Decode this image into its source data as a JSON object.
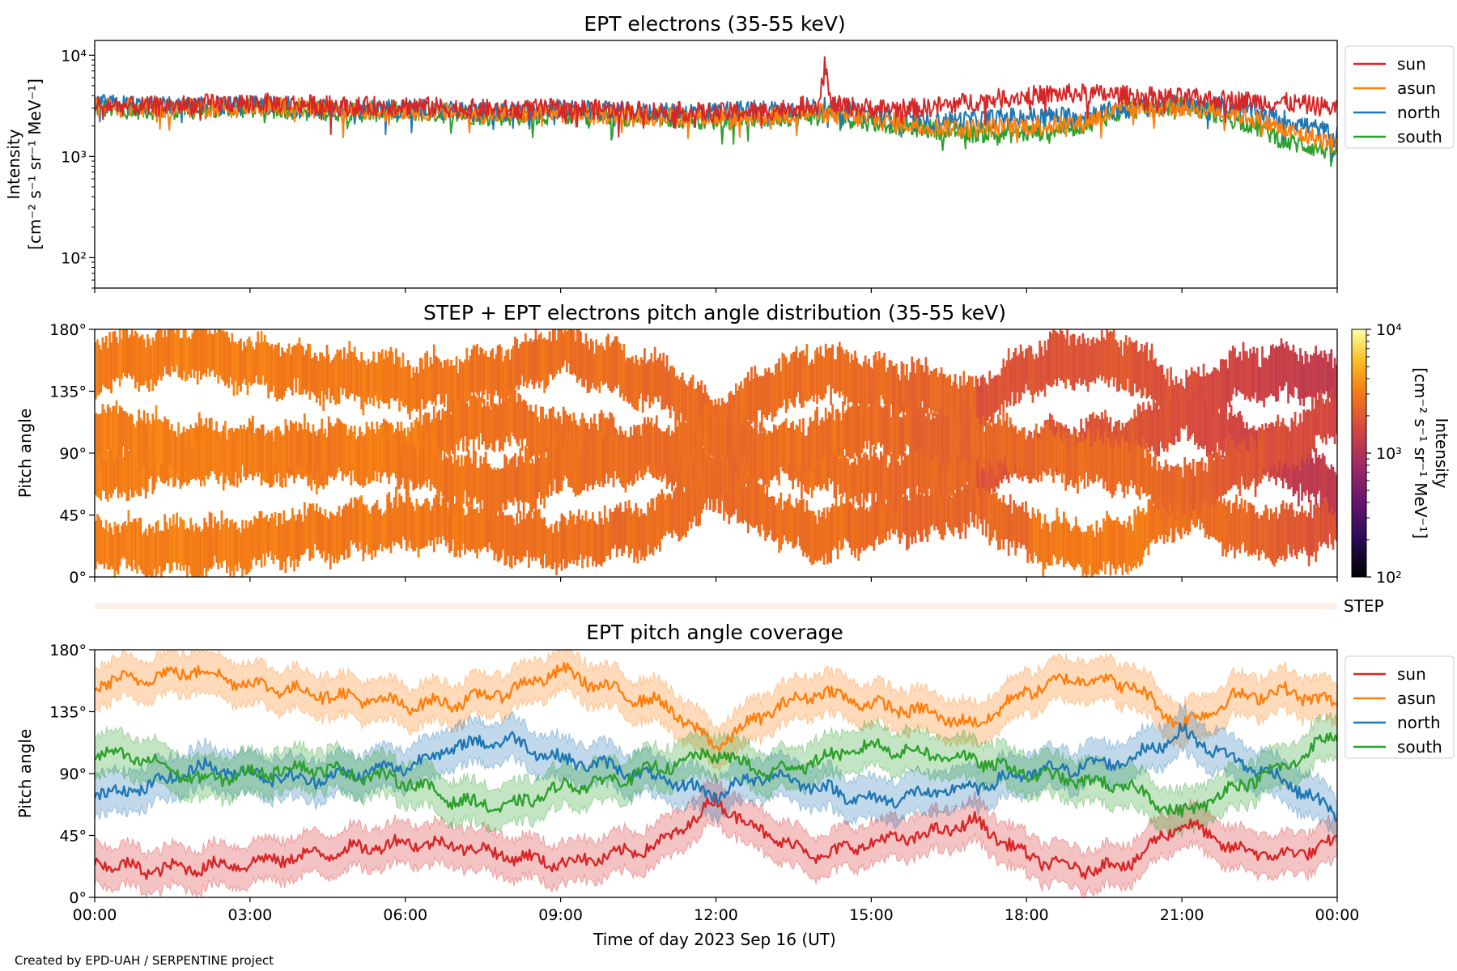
{
  "footer": {
    "credit": "Created by EPD-UAH / SERPENTINE project"
  },
  "colors": {
    "sun": "#d62728",
    "asun": "#ff7f0e",
    "north": "#1f77b4",
    "south": "#2ca02c",
    "step_band": "#fdf0ea"
  },
  "chart_data": [
    {
      "type": "line",
      "title": "EPT electrons (35-55 keV)",
      "ylabel": [
        "Intensity",
        "[cm⁻² s⁻¹ sr⁻¹ MeV⁻¹]"
      ],
      "yscale": "log",
      "ylim": [
        50,
        14000
      ],
      "y_tick_labels": [
        "10²",
        "10³",
        "10⁴"
      ],
      "xlim_hours": [
        0,
        24
      ],
      "legend_position": "outside-right-top",
      "x_hours": [
        0,
        1,
        2,
        3,
        4,
        5,
        6,
        7,
        8,
        9,
        10,
        11,
        12,
        13,
        14,
        15,
        16,
        17,
        18,
        19,
        20,
        21,
        22,
        23,
        24
      ],
      "series": [
        {
          "name": "sun",
          "values": [
            3200,
            3100,
            3300,
            3400,
            3300,
            3100,
            3200,
            3000,
            2900,
            3000,
            2900,
            2800,
            2700,
            2800,
            3300,
            3000,
            3000,
            3500,
            4000,
            4200,
            4000,
            3800,
            3600,
            3400,
            3000
          ]
        },
        {
          "name": "asun",
          "values": [
            3100,
            3000,
            3000,
            3200,
            3000,
            2800,
            2900,
            2700,
            2600,
            2700,
            2600,
            2500,
            2400,
            2500,
            2700,
            2300,
            2000,
            1900,
            2000,
            2100,
            3000,
            3100,
            2700,
            1800,
            1300
          ]
        },
        {
          "name": "north",
          "values": [
            3300,
            3200,
            3100,
            3200,
            3100,
            2900,
            3000,
            2800,
            2700,
            2900,
            2800,
            2700,
            2800,
            2900,
            3100,
            2600,
            2200,
            2300,
            2500,
            2500,
            3000,
            3300,
            3100,
            2300,
            1600
          ]
        },
        {
          "name": "south",
          "values": [
            3000,
            2900,
            2900,
            3000,
            2900,
            2700,
            2800,
            2600,
            2500,
            2600,
            2500,
            2400,
            2300,
            2400,
            2600,
            2200,
            1900,
            1700,
            1700,
            2000,
            2900,
            3200,
            2400,
            1400,
            1100
          ]
        }
      ]
    },
    {
      "type": "heatmap",
      "title": "STEP + EPT electrons pitch angle distribution (35-55 keV)",
      "ylabel": "Pitch angle",
      "ylim": [
        0,
        180
      ],
      "y_tick_labels": [
        "0°",
        "45°",
        "90°",
        "135°",
        "180°"
      ],
      "colorbar": {
        "label": [
          "Intensity",
          "[cm⁻² s⁻¹ sr⁻¹ MeV⁻¹]"
        ],
        "scale": "log",
        "range": [
          100,
          10000
        ],
        "tick_labels": [
          "10²",
          "10³",
          "10⁴"
        ]
      },
      "intensity_hours": [
        0,
        2,
        4,
        6,
        8,
        10,
        12,
        14,
        16,
        18,
        20,
        22,
        24
      ],
      "intensity_values": [
        3100,
        3200,
        3000,
        3000,
        2700,
        2600,
        2500,
        2700,
        2300,
        2500,
        2600,
        2000,
        1500
      ],
      "step_band_label": "STEP"
    },
    {
      "type": "line",
      "title": "EPT pitch angle coverage",
      "ylabel": "Pitch angle",
      "xlabel": "Time of day 2023 Sep 16 (UT)",
      "ylim": [
        0,
        180
      ],
      "y_tick_labels": [
        "0°",
        "45°",
        "90°",
        "135°",
        "180°"
      ],
      "x_tick_labels": [
        "00:00",
        "03:00",
        "06:00",
        "09:00",
        "12:00",
        "15:00",
        "18:00",
        "21:00",
        "00:00"
      ],
      "band_halfwidth_deg": 15,
      "legend_position": "outside-right-top",
      "x_hours": [
        0,
        1,
        2,
        3,
        4,
        5,
        6,
        7,
        8,
        9,
        10,
        11,
        12,
        13,
        14,
        15,
        16,
        17,
        18,
        19,
        20,
        21,
        22,
        23,
        24
      ],
      "series": [
        {
          "name": "sun",
          "values": [
            25,
            20,
            22,
            25,
            30,
            35,
            40,
            38,
            30,
            25,
            30,
            40,
            70,
            45,
            30,
            40,
            45,
            55,
            30,
            20,
            25,
            55,
            35,
            30,
            40
          ]
        },
        {
          "name": "asun",
          "values": [
            155,
            160,
            165,
            155,
            150,
            145,
            140,
            142,
            150,
            165,
            150,
            140,
            110,
            135,
            150,
            140,
            135,
            125,
            150,
            160,
            155,
            125,
            145,
            150,
            140
          ]
        },
        {
          "name": "north",
          "values": [
            75,
            80,
            95,
            90,
            85,
            90,
            95,
            110,
            115,
            100,
            95,
            85,
            75,
            90,
            80,
            70,
            75,
            80,
            90,
            95,
            100,
            120,
            100,
            85,
            60
          ]
        },
        {
          "name": "south",
          "values": [
            105,
            100,
            85,
            90,
            95,
            90,
            85,
            70,
            65,
            80,
            85,
            95,
            105,
            90,
            100,
            110,
            105,
            100,
            90,
            85,
            80,
            60,
            80,
            95,
            120
          ]
        }
      ]
    }
  ]
}
